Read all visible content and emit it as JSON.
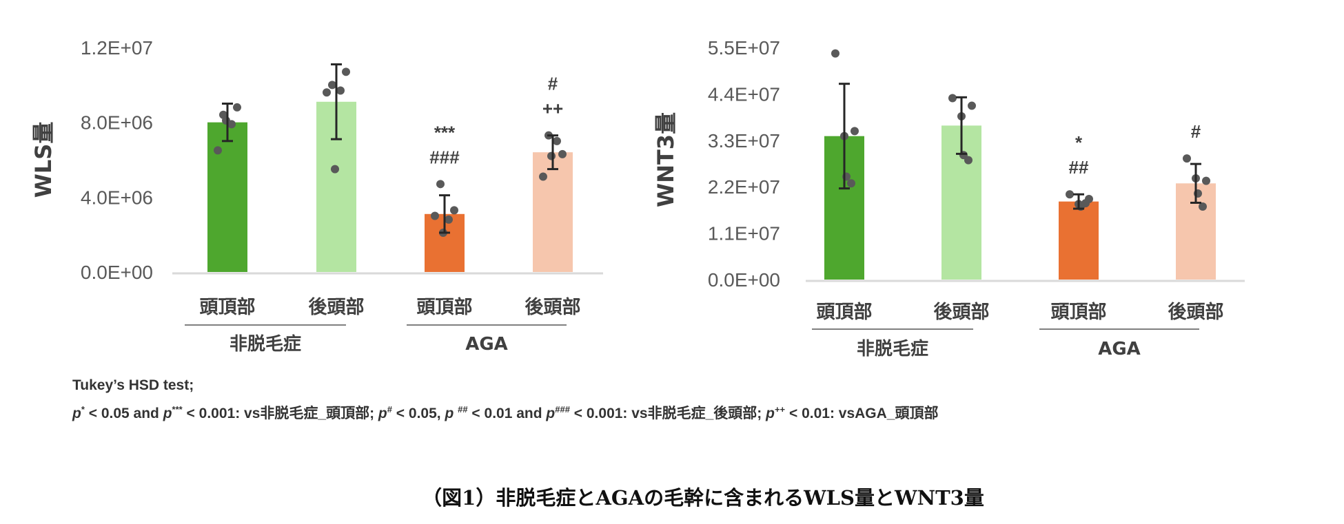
{
  "chart_data": [
    {
      "type": "bar",
      "ylabel": "WLS量",
      "ylim": [
        0,
        12000000
      ],
      "yticks": [
        "0.0E+00",
        "4.0E+06",
        "8.0E+06",
        "1.2E+07"
      ],
      "ytick_values": [
        0,
        4000000,
        8000000,
        12000000
      ],
      "categories": [
        "頭頂部",
        "後頭部",
        "頭頂部",
        "後頭部"
      ],
      "groups": [
        {
          "label": "非脱毛症",
          "categories": [
            0,
            1
          ]
        },
        {
          "label": "AGA",
          "categories": [
            2,
            3
          ]
        }
      ],
      "values": [
        8000000,
        9100000,
        3100000,
        6400000
      ],
      "error": [
        1000000,
        2000000,
        1000000,
        900000
      ],
      "points": [
        [
          8400000,
          8800000,
          8100000,
          7900000,
          6500000
        ],
        [
          10000000,
          10700000,
          5500000,
          9700000,
          9600000
        ],
        [
          4700000,
          3300000,
          2100000,
          2800000,
          3000000
        ],
        [
          7300000,
          6300000,
          6200000,
          7000000,
          5100000
        ]
      ],
      "colors": [
        "#4ea72e",
        "#b4e5a2",
        "#e97132",
        "#f6c6ad"
      ],
      "annotations": [
        [],
        [],
        [
          "***",
          "###"
        ],
        [
          "#",
          "++"
        ]
      ],
      "grid": false
    },
    {
      "type": "bar",
      "ylabel": "WNT3量",
      "ylim": [
        0,
        55000000
      ],
      "yticks": [
        "0.0E+00",
        "1.1E+07",
        "2.2E+07",
        "3.3E+07",
        "4.4E+07",
        "5.5E+07"
      ],
      "ytick_values": [
        0,
        11000000,
        22000000,
        33000000,
        44000000,
        55000000
      ],
      "categories": [
        "頭頂部",
        "後頭部",
        "頭頂部",
        "後頭部"
      ],
      "groups": [
        {
          "label": "非脱毛症",
          "categories": [
            0,
            1
          ]
        },
        {
          "label": "AGA",
          "categories": [
            2,
            3
          ]
        }
      ],
      "values": [
        34000000,
        36500000,
        18500000,
        22800000
      ],
      "error": [
        12400000,
        6700000,
        1700000,
        4600000
      ],
      "points": [
        [
          53600000,
          35200000,
          34000000,
          24400000,
          22800000
        ],
        [
          43000000,
          41200000,
          38700000,
          29500000,
          28300000
        ],
        [
          20200000,
          19100000,
          17900000,
          17300000,
          18100000
        ],
        [
          28700000,
          23400000,
          24000000,
          20400000,
          17300000
        ]
      ],
      "colors": [
        "#4ea72e",
        "#b4e5a2",
        "#e97132",
        "#f6c6ad"
      ],
      "annotations": [
        [],
        [],
        [
          "*",
          "##"
        ],
        [
          "#"
        ]
      ],
      "grid": false
    }
  ],
  "footnote": {
    "line1": "Tukey’s HSD test;",
    "p": "p",
    "s1": "*",
    "t1": " < 0.05 and ",
    "s2": "***",
    "t2": " < 0.001: vs非脱毛症_頭頂部; ",
    "s3": "#",
    "t3": " < 0.05, ",
    "s4": "##",
    "t4": " < 0.01 and ",
    "s5": "###",
    "t5": " < 0.001: vs非脱毛症_後頭部; ",
    "s6": "++",
    "t6": " < 0.01: vsAGA_頭頂部"
  },
  "figure_title": "（図1）非脱毛症とAGAの毛幹に含まれるWLS量とWNT3量"
}
